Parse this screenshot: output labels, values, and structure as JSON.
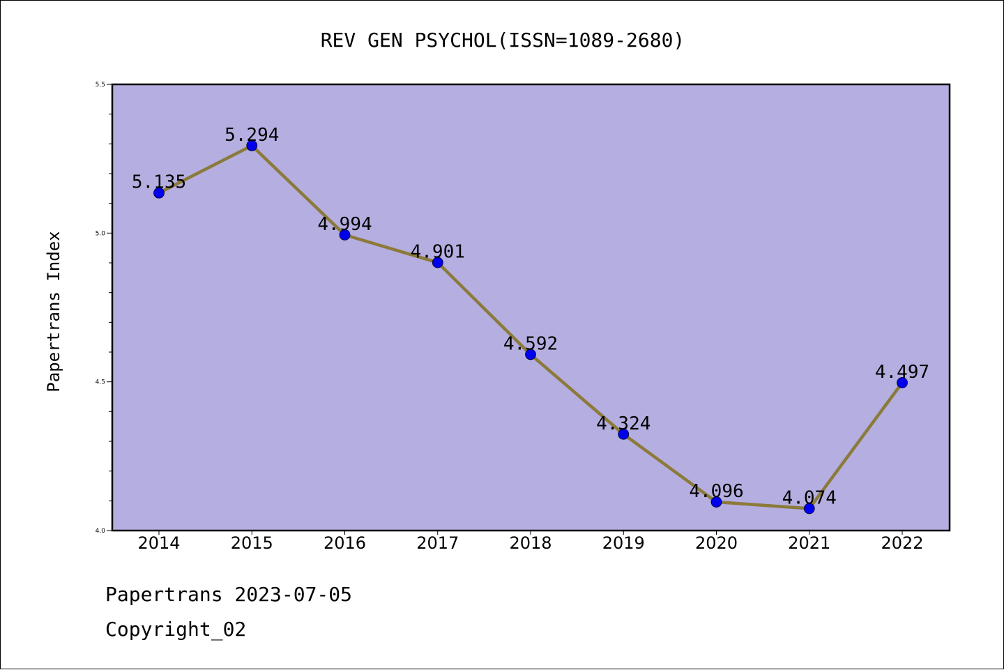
{
  "chart_data": {
    "type": "line",
    "title": "REV GEN PSYCHOL(ISSN=1089-2680)",
    "xlabel": "",
    "ylabel": "Papertrans Index",
    "categories": [
      "2014",
      "2015",
      "2016",
      "2017",
      "2018",
      "2019",
      "2020",
      "2021",
      "2022"
    ],
    "values": [
      5.135,
      5.294,
      4.994,
      4.901,
      4.592,
      4.324,
      4.096,
      4.074,
      4.497
    ],
    "data_labels": [
      "5.135",
      "5.294",
      "4.994",
      "4.901",
      "4.592",
      "4.324",
      "4.096",
      "4.074",
      "4.497"
    ],
    "ylim": [
      4.0,
      5.5
    ],
    "yticks": [
      "4.0",
      "4.5",
      "5.0",
      "5.5"
    ],
    "grid": false,
    "colors": {
      "plot_background": "#b5aee0",
      "line": "#8b7a3a",
      "marker": "#0000ee"
    }
  },
  "footer": {
    "line1": "Papertrans 2023-07-05",
    "line2": "Copyright_02"
  }
}
